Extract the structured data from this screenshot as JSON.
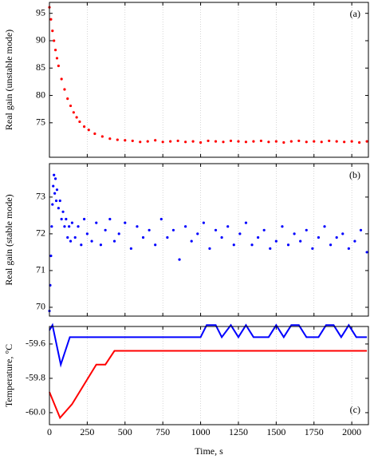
{
  "chart_data": [
    {
      "type": "scatter",
      "annotation": "(a)",
      "ylabel": "Real gain (unstable mode)",
      "color": "#ff0000",
      "xlim": [
        0,
        2110
      ],
      "xticks": [
        0,
        250,
        500,
        750,
        1000,
        1250,
        1500,
        1750,
        2000
      ],
      "ylim": [
        68.7,
        97
      ],
      "yticks": [
        75,
        80,
        85,
        90,
        95
      ],
      "grid": true,
      "x": [
        0,
        10,
        20,
        30,
        40,
        50,
        60,
        80,
        100,
        120,
        140,
        160,
        180,
        200,
        230,
        260,
        300,
        350,
        400,
        450,
        500,
        550,
        600,
        650,
        700,
        750,
        800,
        850,
        900,
        950,
        1000,
        1050,
        1100,
        1150,
        1200,
        1250,
        1300,
        1350,
        1400,
        1450,
        1500,
        1550,
        1600,
        1650,
        1700,
        1750,
        1800,
        1850,
        1900,
        1950,
        2000,
        2050,
        2100
      ],
      "values": [
        96.1,
        93.9,
        91.8,
        90.0,
        88.3,
        86.8,
        85.4,
        83.0,
        81.1,
        79.4,
        78.1,
        76.9,
        76.0,
        75.2,
        74.3,
        73.7,
        73.0,
        72.5,
        72.1,
        71.9,
        71.8,
        71.7,
        71.5,
        71.6,
        71.8,
        71.5,
        71.6,
        71.7,
        71.5,
        71.6,
        71.4,
        71.7,
        71.6,
        71.5,
        71.7,
        71.6,
        71.5,
        71.6,
        71.7,
        71.5,
        71.6,
        71.4,
        71.6,
        71.7,
        71.5,
        71.6,
        71.5,
        71.7,
        71.6,
        71.5,
        71.6,
        71.4,
        71.6
      ]
    },
    {
      "type": "scatter",
      "annotation": "(b)",
      "ylabel": "Real gain (stable mode)",
      "color": "#0000ff",
      "xlim": [
        0,
        2110
      ],
      "xticks": [
        0,
        250,
        500,
        750,
        1000,
        1250,
        1500,
        1750,
        2000
      ],
      "ylim": [
        69.76,
        73.91
      ],
      "yticks": [
        70,
        71,
        72,
        73
      ],
      "grid": true,
      "x": [
        0,
        5,
        10,
        15,
        20,
        25,
        30,
        35,
        40,
        45,
        50,
        60,
        70,
        80,
        90,
        100,
        110,
        120,
        130,
        140,
        150,
        170,
        190,
        210,
        230,
        250,
        280,
        310,
        340,
        370,
        400,
        430,
        460,
        500,
        540,
        580,
        620,
        660,
        700,
        740,
        780,
        820,
        860,
        900,
        940,
        980,
        1020,
        1060,
        1100,
        1140,
        1180,
        1220,
        1260,
        1300,
        1340,
        1380,
        1420,
        1460,
        1500,
        1540,
        1580,
        1620,
        1660,
        1700,
        1740,
        1780,
        1820,
        1860,
        1900,
        1940,
        1980,
        2020,
        2060,
        2100
      ],
      "values": [
        69.9,
        70.6,
        71.4,
        72.2,
        72.8,
        73.3,
        73.6,
        73.1,
        73.5,
        72.9,
        73.2,
        72.7,
        72.9,
        72.4,
        72.6,
        72.2,
        72.4,
        71.9,
        72.2,
        71.8,
        72.3,
        71.9,
        72.2,
        71.7,
        72.4,
        72.0,
        71.8,
        72.3,
        71.7,
        72.1,
        72.4,
        71.8,
        72.0,
        72.3,
        71.6,
        72.2,
        71.9,
        72.1,
        71.7,
        72.4,
        71.9,
        72.1,
        71.3,
        72.2,
        71.8,
        72.0,
        72.3,
        71.6,
        72.1,
        71.9,
        72.2,
        71.7,
        72.0,
        72.3,
        71.7,
        71.9,
        72.1,
        71.6,
        71.8,
        72.2,
        71.7,
        72.0,
        71.8,
        72.1,
        71.6,
        71.9,
        72.2,
        71.7,
        71.9,
        72.0,
        71.6,
        71.8,
        72.1,
        71.5
      ]
    },
    {
      "type": "line",
      "annotation": "(c)",
      "ylabel": "Temperature, °C",
      "xlabel": "Time, s",
      "xlim": [
        0,
        2110
      ],
      "xticks": [
        0,
        250,
        500,
        750,
        1000,
        1250,
        1500,
        1750,
        2000
      ],
      "ylim": [
        -60.07,
        -59.498
      ],
      "yticks": [
        -59.6,
        -59.8,
        {
          "value": -60,
          "label": "-60.0"
        }
      ],
      "grid": true,
      "series": [
        {
          "color": "#0000ff",
          "x": [
            0,
            20,
            75,
            135,
            1000,
            1040,
            1100,
            1140,
            1200,
            1250,
            1300,
            1350,
            1450,
            1500,
            1550,
            1600,
            1650,
            1700,
            1780,
            1830,
            1880,
            1930,
            1980,
            2030,
            2100
          ],
          "values": [
            -59.52,
            -59.49,
            -59.72,
            -59.56,
            -59.56,
            -59.49,
            -59.49,
            -59.56,
            -59.49,
            -59.56,
            -59.49,
            -59.56,
            -59.56,
            -59.49,
            -59.56,
            -59.49,
            -59.49,
            -59.56,
            -59.56,
            -59.49,
            -59.49,
            -59.56,
            -59.49,
            -59.56,
            -59.56
          ]
        },
        {
          "color": "#ff0000",
          "x": [
            0,
            70,
            150,
            310,
            370,
            430,
            2100
          ],
          "values": [
            -59.88,
            -60.03,
            -59.95,
            -59.72,
            -59.72,
            -59.64,
            -59.64
          ]
        }
      ]
    }
  ]
}
